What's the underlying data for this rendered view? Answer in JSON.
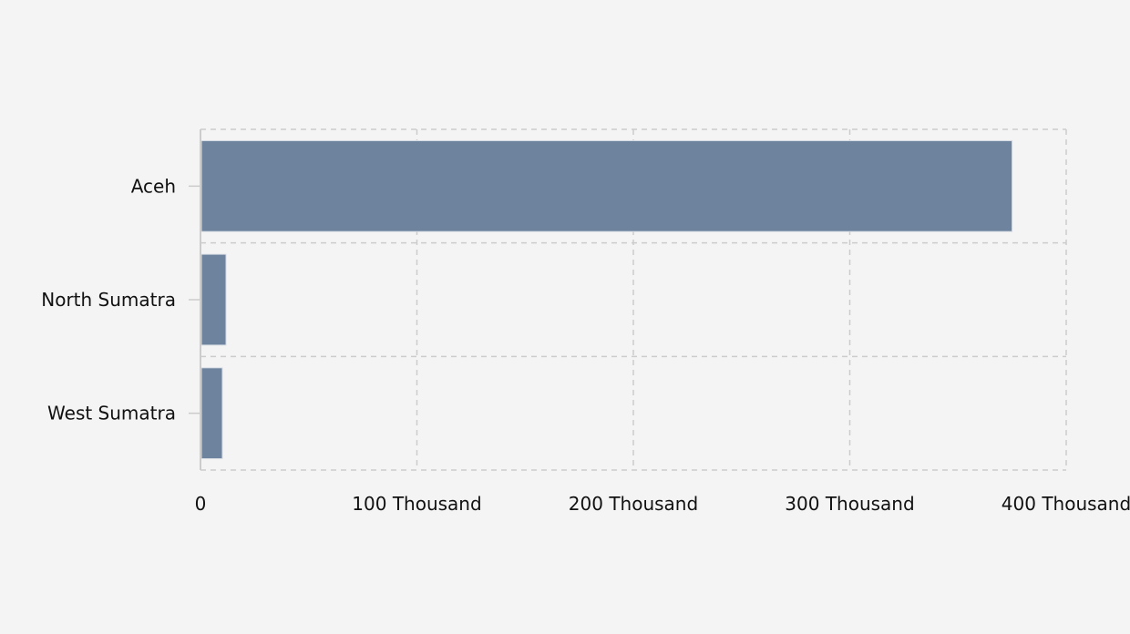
{
  "chart_data": {
    "type": "bar",
    "orientation": "horizontal",
    "title": "",
    "xlabel": "",
    "ylabel": "",
    "categories": [
      "Aceh",
      "North Sumatra",
      "West Sumatra"
    ],
    "values": [
      375000,
      11800,
      10100
    ],
    "xlim": [
      0,
      400000
    ],
    "xticks": [
      0,
      100000,
      200000,
      300000,
      400000
    ],
    "xtick_labels": [
      "0",
      "100 Thousand",
      "200 Thousand",
      "300 Thousand",
      "400 Thousand"
    ],
    "grid": true,
    "legend": "none",
    "colors": {
      "bar": "#6e839e",
      "bar_stroke": "#d8dde4",
      "grid": "#cccccc",
      "background": "#f4f4f4"
    }
  }
}
